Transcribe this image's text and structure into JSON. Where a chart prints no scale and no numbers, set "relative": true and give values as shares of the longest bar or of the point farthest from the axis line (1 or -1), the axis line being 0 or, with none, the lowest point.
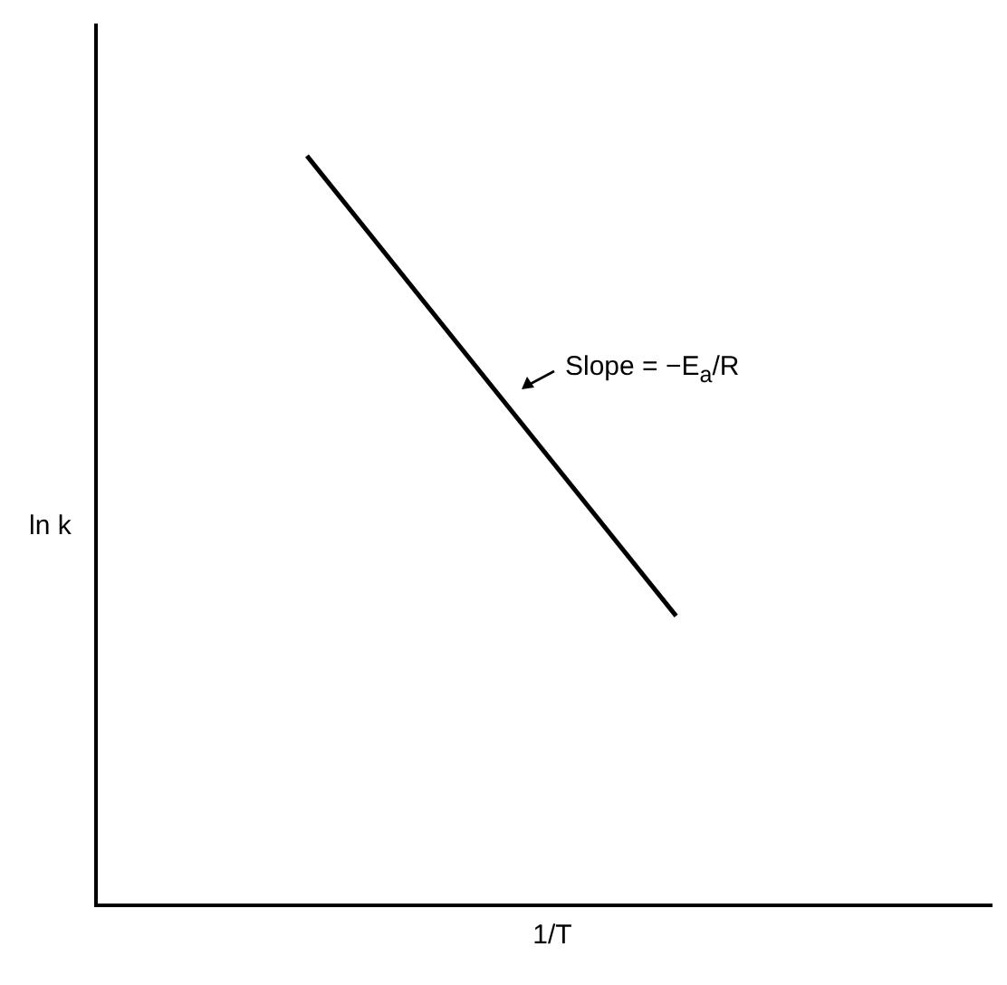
{
  "chart_data": {
    "type": "line",
    "relative": true,
    "xlabel": "1/T",
    "ylabel": "ln k",
    "categories": [
      null,
      null,
      null,
      null,
      null,
      null,
      null,
      null,
      null,
      null,
      null,
      null,
      null,
      null,
      null,
      null,
      null,
      null
    ],
    "series": [
      {
        "color": "#000000",
        "values": [
          null,
          null,
          null,
          null,
          1,
          null,
          null,
          null,
          null,
          null,
          null,
          0.386,
          null,
          null,
          null,
          null,
          null,
          null
        ]
      }
    ],
    "annotations": [
      "Slope = −E$_{a}$/R"
    ],
    "marker": "none",
    "grid": false,
    "legend": false
  }
}
